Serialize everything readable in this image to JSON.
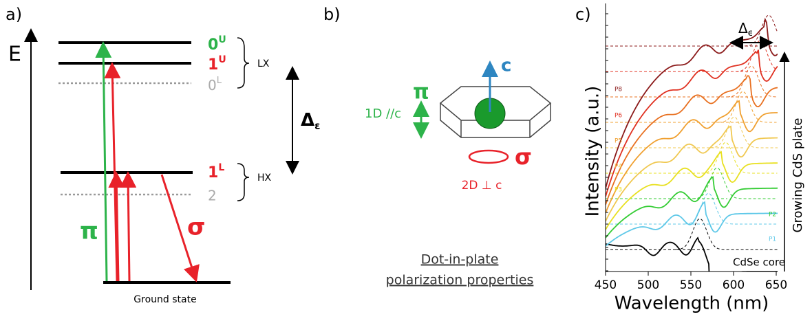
{
  "panel_a": {
    "label": "a)",
    "axis_label": "E",
    "upper_levels": [
      {
        "main": "0",
        "sup": "U"
      },
      {
        "main": "1",
        "sup": "U"
      },
      {
        "main": "0",
        "sup": "L"
      }
    ],
    "upper_group": "LX",
    "lower_levels": [
      {
        "main": "1",
        "sup": "L"
      },
      {
        "main": "2"
      }
    ],
    "lower_group": "HX",
    "splitting": {
      "main": "Δ",
      "sub": "ε"
    },
    "pi": "π",
    "sigma": "σ",
    "ground": "Ground state"
  },
  "panel_b": {
    "label": "b)",
    "axis": "c",
    "pi": "π",
    "pi_text": "1D //c",
    "sigma": "σ",
    "sigma_text": "2D ⊥ c",
    "caption": [
      "Dot-in-plate",
      "polarization properties"
    ]
  },
  "panel_c": {
    "label": "c)",
    "xlabel": "Wavelength (nm)",
    "ylabel": "Intensity (a.u.)",
    "xlim": [
      450,
      650
    ],
    "xticks": [
      450,
      500,
      550,
      600,
      650
    ],
    "splitting": {
      "main": "Δ",
      "sub": "ϵ"
    },
    "arrow_label": "Growing CdS plate",
    "curve_labels": [
      "CdSe core",
      "P1",
      "P2",
      "P3",
      "P4",
      "P5",
      "P6",
      "P8"
    ]
  }
}
